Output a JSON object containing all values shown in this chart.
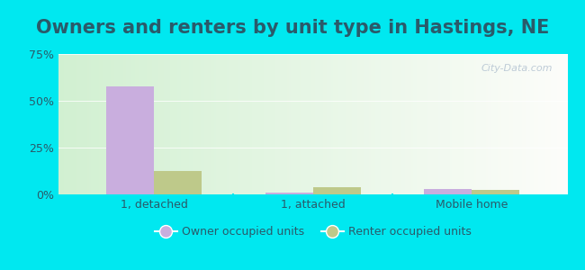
{
  "title": "Owners and renters by unit type in Hastings, NE",
  "categories": [
    "1, detached",
    "1, attached",
    "Mobile home"
  ],
  "owner_values": [
    57.5,
    1.2,
    2.8
  ],
  "renter_values": [
    12.5,
    4.0,
    2.2
  ],
  "owner_color": "#c9aede",
  "renter_color": "#bec98a",
  "ylim": [
    0,
    75
  ],
  "yticks": [
    0,
    25,
    50,
    75
  ],
  "yticklabels": [
    "0%",
    "25%",
    "50%",
    "75%"
  ],
  "legend_owner": "Owner occupied units",
  "legend_renter": "Renter occupied units",
  "bar_width": 0.3,
  "outer_bg": "#00e8f0",
  "watermark": "City-Data.com",
  "title_fontsize": 15,
  "axis_label_fontsize": 9,
  "text_color": "#2a5a6a"
}
